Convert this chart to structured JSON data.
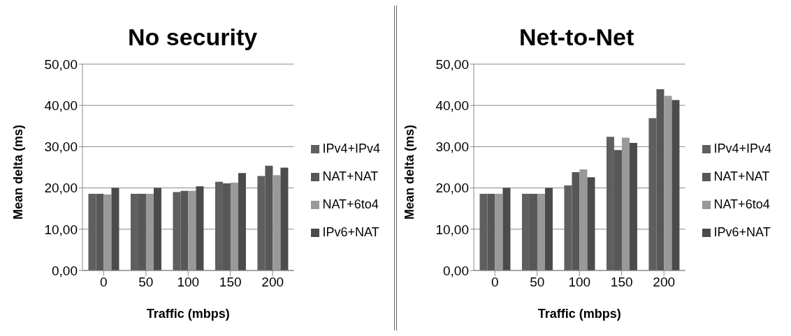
{
  "chart_data": [
    {
      "type": "bar",
      "title": "No security",
      "xlabel": "Traffic (mbps)",
      "ylabel": "Mean delta (ms)",
      "categories": [
        "0",
        "50",
        "100",
        "150",
        "200"
      ],
      "ylim": [
        0,
        50
      ],
      "yticks": [
        {
          "value": 0,
          "label": "0,00"
        },
        {
          "value": 10,
          "label": "10,00"
        },
        {
          "value": 20,
          "label": "20,00"
        },
        {
          "value": 30,
          "label": "30,00"
        },
        {
          "value": 40,
          "label": "40,00"
        },
        {
          "value": 50,
          "label": "50,00"
        }
      ],
      "grid": "y",
      "legend": "right",
      "series": [
        {
          "name": "IPv4+IPv4",
          "color": "#5f5f5f",
          "values": [
            18.6,
            18.6,
            19.0,
            21.5,
            22.9
          ]
        },
        {
          "name": "NAT+NAT",
          "color": "#575757",
          "values": [
            18.6,
            18.6,
            19.3,
            21.1,
            25.4
          ]
        },
        {
          "name": "NAT+6to4",
          "color": "#999999",
          "values": [
            18.4,
            18.6,
            19.3,
            21.3,
            23.1
          ]
        },
        {
          "name": "IPv6+NAT",
          "color": "#4b4b4b",
          "values": [
            20.0,
            20.0,
            20.4,
            23.6,
            24.9
          ]
        }
      ]
    },
    {
      "type": "bar",
      "title": "Net-to-Net",
      "xlabel": "Traffic (mbps)",
      "ylabel": "Mean delta (ms)",
      "categories": [
        "0",
        "50",
        "100",
        "150",
        "200"
      ],
      "ylim": [
        0,
        50
      ],
      "yticks": [
        {
          "value": 0,
          "label": "0,00"
        },
        {
          "value": 10,
          "label": "10,00"
        },
        {
          "value": 20,
          "label": "20,00"
        },
        {
          "value": 30,
          "label": "30,00"
        },
        {
          "value": 40,
          "label": "40,00"
        },
        {
          "value": 50,
          "label": "50,00"
        }
      ],
      "grid": "y",
      "legend": "right",
      "series": [
        {
          "name": "IPv4+IPv4",
          "color": "#5f5f5f",
          "values": [
            18.6,
            18.6,
            20.6,
            32.4,
            36.9
          ]
        },
        {
          "name": "NAT+NAT",
          "color": "#575757",
          "values": [
            18.6,
            18.6,
            23.8,
            29.2,
            43.9
          ]
        },
        {
          "name": "NAT+6to4",
          "color": "#999999",
          "values": [
            18.6,
            18.6,
            24.5,
            32.2,
            42.3
          ]
        },
        {
          "name": "IPv6+NAT",
          "color": "#4b4b4b",
          "values": [
            20.0,
            20.0,
            22.6,
            30.9,
            41.3
          ]
        }
      ]
    }
  ]
}
